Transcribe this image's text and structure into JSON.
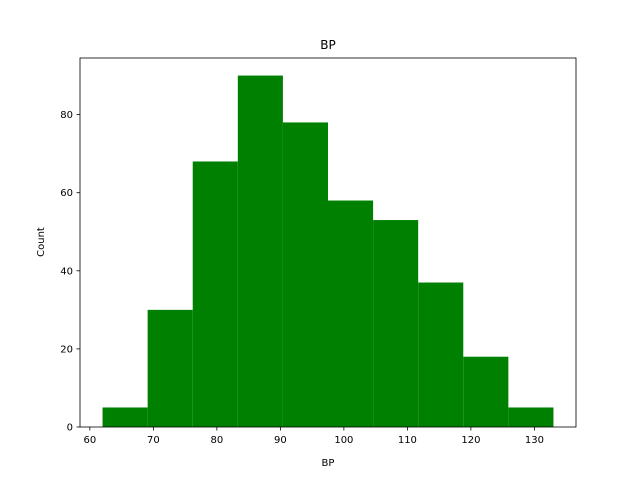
{
  "chart_data": {
    "type": "bar",
    "title": "BP",
    "xlabel": "BP",
    "ylabel": "Count",
    "bin_edges": [
      62.0,
      69.1,
      76.2,
      83.3,
      90.4,
      97.5,
      104.6,
      111.7,
      118.8,
      125.9,
      133.0
    ],
    "values": [
      5,
      30,
      68,
      90,
      78,
      58,
      53,
      37,
      18,
      5
    ],
    "xlim": [
      58.45,
      136.55
    ],
    "ylim": [
      0,
      94.5
    ],
    "xticks": [
      60,
      70,
      80,
      90,
      100,
      110,
      120,
      130
    ],
    "yticks": [
      0,
      20,
      40,
      60,
      80
    ],
    "color": "#008000",
    "grid": false,
    "legend": "none"
  }
}
